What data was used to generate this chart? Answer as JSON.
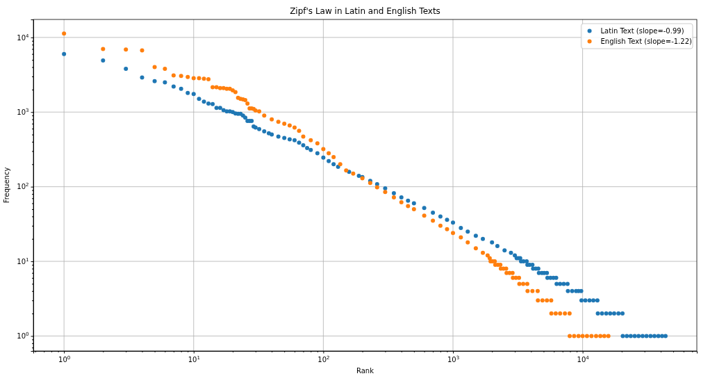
{
  "chart_data": {
    "type": "scatter",
    "title": "Zipf's Law in Latin and English Texts",
    "xlabel": "Rank",
    "ylabel": "Frequency",
    "log": "xy",
    "grid": true,
    "legend": "top right",
    "marker": "circle",
    "xlim": [
      0.58,
      76000
    ],
    "ylim": [
      0.63,
      17400
    ],
    "xticks": [
      {
        "value": 0.6,
        "label": null
      },
      {
        "value": 0.7,
        "label": null
      },
      {
        "value": 0.8,
        "label": null
      },
      {
        "value": 0.9,
        "label": null
      },
      {
        "value": 1,
        "label": "10$^{0}$"
      },
      {
        "value": 2,
        "label": null
      },
      {
        "value": 3,
        "label": null
      },
      {
        "value": 4,
        "label": null
      },
      {
        "value": 5,
        "label": null
      },
      {
        "value": 6,
        "label": null
      },
      {
        "value": 7,
        "label": null
      },
      {
        "value": 8,
        "label": null
      },
      {
        "value": 9,
        "label": null
      },
      {
        "value": 10,
        "label": "10$^{1}$"
      },
      {
        "value": 20,
        "label": null
      },
      {
        "value": 30,
        "label": null
      },
      {
        "value": 40,
        "label": null
      },
      {
        "value": 50,
        "label": null
      },
      {
        "value": 60,
        "label": null
      },
      {
        "value": 70,
        "label": null
      },
      {
        "value": 80,
        "label": null
      },
      {
        "value": 90,
        "label": null
      },
      {
        "value": 100,
        "label": "10$^{2}$"
      },
      {
        "value": 200,
        "label": null
      },
      {
        "value": 300,
        "label": null
      },
      {
        "value": 400,
        "label": null
      },
      {
        "value": 500,
        "label": null
      },
      {
        "value": 600,
        "label": null
      },
      {
        "value": 700,
        "label": null
      },
      {
        "value": 800,
        "label": null
      },
      {
        "value": 900,
        "label": null
      },
      {
        "value": 1000,
        "label": "10$^{3}$"
      },
      {
        "value": 2000,
        "label": null
      },
      {
        "value": 3000,
        "label": null
      },
      {
        "value": 4000,
        "label": null
      },
      {
        "value": 5000,
        "label": null
      },
      {
        "value": 6000,
        "label": null
      },
      {
        "value": 7000,
        "label": null
      },
      {
        "value": 8000,
        "label": null
      },
      {
        "value": 9000,
        "label": null
      },
      {
        "value": 10000,
        "label": "10$^{4}$"
      },
      {
        "value": 20000,
        "label": null
      },
      {
        "value": 30000,
        "label": null
      },
      {
        "value": 40000,
        "label": null
      },
      {
        "value": 50000,
        "label": null
      },
      {
        "value": 60000,
        "label": null
      },
      {
        "value": 70000,
        "label": null
      }
    ],
    "yticks": [
      {
        "value": 0.7,
        "label": null
      },
      {
        "value": 0.8,
        "label": null
      },
      {
        "value": 0.9,
        "label": null
      },
      {
        "value": 1,
        "label": "10$^{0}$"
      },
      {
        "value": 2,
        "label": null
      },
      {
        "value": 3,
        "label": null
      },
      {
        "value": 4,
        "label": null
      },
      {
        "value": 5,
        "label": null
      },
      {
        "value": 6,
        "label": null
      },
      {
        "value": 7,
        "label": null
      },
      {
        "value": 8,
        "label": null
      },
      {
        "value": 9,
        "label": null
      },
      {
        "value": 10,
        "label": "10$^{1}$"
      },
      {
        "value": 20,
        "label": null
      },
      {
        "value": 30,
        "label": null
      },
      {
        "value": 40,
        "label": null
      },
      {
        "value": 50,
        "label": null
      },
      {
        "value": 60,
        "label": null
      },
      {
        "value": 70,
        "label": null
      },
      {
        "value": 80,
        "label": null
      },
      {
        "value": 90,
        "label": null
      },
      {
        "value": 100,
        "label": "10$^{2}$"
      },
      {
        "value": 200,
        "label": null
      },
      {
        "value": 300,
        "label": null
      },
      {
        "value": 400,
        "label": null
      },
      {
        "value": 500,
        "label": null
      },
      {
        "value": 600,
        "label": null
      },
      {
        "value": 700,
        "label": null
      },
      {
        "value": 800,
        "label": null
      },
      {
        "value": 900,
        "label": null
      },
      {
        "value": 1000,
        "label": "10$^{3}$"
      },
      {
        "value": 2000,
        "label": null
      },
      {
        "value": 3000,
        "label": null
      },
      {
        "value": 4000,
        "label": null
      },
      {
        "value": 5000,
        "label": null
      },
      {
        "value": 6000,
        "label": null
      },
      {
        "value": 7000,
        "label": null
      },
      {
        "value": 8000,
        "label": null
      },
      {
        "value": 9000,
        "label": null
      },
      {
        "value": 10000,
        "label": "10$^{4}$"
      }
    ],
    "series": [
      {
        "name": "Latin Text (slope=-0.99)",
        "color": "#1f77b4",
        "x": [
          1,
          2,
          3,
          4,
          5,
          6,
          7,
          8,
          9,
          10,
          11,
          12,
          13,
          14,
          15,
          16,
          17,
          18,
          19,
          20,
          21,
          22,
          23,
          24,
          25,
          26,
          27,
          28,
          29,
          30,
          32,
          35,
          38,
          40,
          45,
          50,
          55,
          60,
          65,
          70,
          75,
          80,
          90,
          100,
          110,
          120,
          130,
          158,
          188,
          200,
          230,
          260,
          300,
          350,
          400,
          450,
          500,
          600,
          700,
          800,
          900,
          1000,
          1150,
          1300,
          1500,
          1700,
          2000,
          2200,
          2500,
          2800,
          3000,
          3100,
          3200,
          3300,
          3350,
          3500,
          3700,
          3750,
          3900,
          4100,
          4150,
          4350,
          4550,
          4600,
          4850,
          5050,
          5300,
          5350,
          5650,
          5950,
          6250,
          6300,
          6700,
          7150,
          7650,
          7700,
          8300,
          8900,
          9300,
          9750,
          9800,
          10500,
          11300,
          12100,
          13000,
          13100,
          14100,
          15200,
          16300,
          17500,
          18900,
          20300,
          20400,
          21900,
          23500,
          25200,
          27000,
          29000,
          31100,
          33400,
          35800,
          38400,
          41000,
          43600
        ],
        "values": [
          6000,
          4900,
          3800,
          2900,
          2600,
          2500,
          2200,
          2050,
          1800,
          1750,
          1500,
          1380,
          1300,
          1280,
          1140,
          1140,
          1060,
          1020,
          1020,
          1000,
          960,
          950,
          950,
          900,
          840,
          760,
          760,
          760,
          640,
          620,
          590,
          550,
          520,
          500,
          470,
          450,
          430,
          420,
          390,
          360,
          330,
          310,
          280,
          245,
          220,
          200,
          185,
          158,
          140,
          135,
          120,
          108,
          95,
          82,
          72,
          65,
          60,
          52,
          45,
          40,
          36,
          33,
          28,
          25,
          22,
          20,
          18,
          16,
          14,
          13,
          12,
          11,
          11,
          11,
          10,
          10,
          10,
          9,
          9,
          9,
          8,
          8,
          8,
          7,
          7,
          7,
          7,
          6,
          6,
          6,
          6,
          5,
          5,
          5,
          5,
          4,
          4,
          4,
          4,
          4,
          3,
          3,
          3,
          3,
          3,
          2,
          2,
          2,
          2,
          2,
          2,
          2,
          1,
          1,
          1,
          1,
          1,
          1,
          1,
          1,
          1,
          1,
          1,
          1
        ]
      },
      {
        "name": "English Text (slope=-1.22)",
        "color": "#ff7f0e",
        "x": [
          1,
          2,
          3,
          4,
          5,
          6,
          7,
          8,
          9,
          10,
          11,
          12,
          13,
          14,
          15,
          16,
          17,
          18,
          19,
          20,
          21,
          22,
          23,
          24,
          25,
          26,
          27,
          28,
          29,
          30,
          32,
          35,
          40,
          45,
          50,
          55,
          60,
          65,
          70,
          80,
          90,
          100,
          110,
          120,
          135,
          150,
          170,
          200,
          230,
          260,
          300,
          350,
          400,
          450,
          500,
          600,
          700,
          800,
          900,
          1000,
          1150,
          1300,
          1500,
          1700,
          1850,
          1920,
          1950,
          2020,
          2100,
          2120,
          2220,
          2320,
          2340,
          2450,
          2570,
          2590,
          2730,
          2880,
          2900,
          3060,
          3230,
          3250,
          3480,
          3740,
          3760,
          4100,
          4500,
          4520,
          4900,
          5300,
          5720,
          5740,
          6200,
          6700,
          7300,
          7930,
          7950,
          8600,
          9300,
          10000,
          10800,
          11700,
          12700,
          13700,
          14700,
          15800
        ],
        "values": [
          11300,
          7000,
          6900,
          6700,
          4000,
          3800,
          3100,
          3050,
          2950,
          2850,
          2850,
          2800,
          2750,
          2150,
          2150,
          2100,
          2100,
          2050,
          2050,
          1950,
          1850,
          1550,
          1500,
          1480,
          1450,
          1300,
          1120,
          1120,
          1100,
          1050,
          1020,
          900,
          800,
          740,
          700,
          660,
          620,
          560,
          470,
          420,
          380,
          320,
          280,
          250,
          200,
          165,
          150,
          130,
          112,
          98,
          85,
          72,
          62,
          55,
          50,
          41,
          35,
          30,
          27,
          24,
          21,
          18,
          15,
          13,
          12,
          11,
          10,
          10,
          10,
          9,
          9,
          9,
          8,
          8,
          8,
          7,
          7,
          7,
          6,
          6,
          6,
          5,
          5,
          5,
          4,
          4,
          4,
          3,
          3,
          3,
          3,
          2,
          2,
          2,
          2,
          2,
          1,
          1,
          1,
          1,
          1,
          1,
          1,
          1,
          1,
          1
        ]
      }
    ]
  }
}
